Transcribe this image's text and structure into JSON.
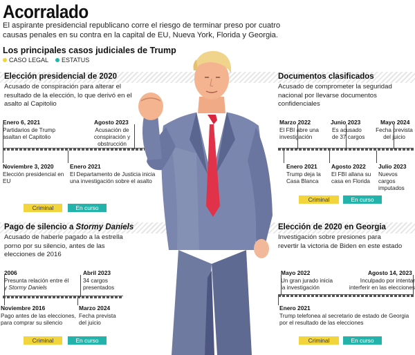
{
  "header": {
    "title": "Acorralado",
    "subtitle": "El aspirante presidencial republicano corre el riesgo de terminar preso por cuatro causas penales en su contra en la capital de EU, Nueva York, Florida y Georgia.",
    "section_title": "Los principales casos judiciales de Trump",
    "legend": {
      "legal": "CASO LEGAL",
      "status": "ESTATUS"
    }
  },
  "colors": {
    "legal": "#f2d53c",
    "status": "#23b3aa"
  },
  "cases": {
    "c1": {
      "title": "Elección presidencial de 2020",
      "desc": "Acusado de conspiración para alterar el resultado de la elección, lo que derivó en el asalto al Capitolio",
      "events": [
        {
          "date": "Enero 6, 2021",
          "text": "Partidarios de Trump asaltan el Capitolio"
        },
        {
          "date": "Agosto 2023",
          "text": "Acusación de conspiración y obstrucción"
        },
        {
          "date": "Noviembre 3, 2020",
          "text": "Elección presidencial en EU"
        },
        {
          "date": "Enero 2021",
          "text": "El Departamento de Justicia inicia una investigación sobre el asalto"
        }
      ],
      "legal": "Criminal",
      "status": "En curso"
    },
    "c2": {
      "title": "Documentos clasificados",
      "desc": "Acusado de comprometer la seguridad nacional por llevarse documentos confidenciales",
      "events": [
        {
          "date": "Marzo 2022",
          "text": "El FBI abre una investigación"
        },
        {
          "date": "Junio 2023",
          "text": "Es acusado de 37 cargos"
        },
        {
          "date": "Mayo 2024",
          "text": "Fecha prevista del juicio"
        },
        {
          "date": "Enero 2021",
          "text": "Trump deja la Casa Blanca"
        },
        {
          "date": "Agosto 2022",
          "text": "El FBI allana su casa en Florida"
        },
        {
          "date": "Julio 2023",
          "text": "Nuevos cargos imputados"
        }
      ],
      "legal": "Criminal",
      "status": "En curso"
    },
    "c3": {
      "title_prefix": "Pago de silencio a",
      "title_name": "Stormy Daniels",
      "desc": "Acusado de haberle pagado a la estrella porno por su silencio, antes de las elecciones de 2016",
      "events": [
        {
          "date": "2006",
          "text": "Presunta relación entre él y",
          "text_name": "Stormy Daniels"
        },
        {
          "date": "Abril 2023",
          "text": "34 cargos presentados"
        },
        {
          "date": "Noviembre 2016",
          "text": "Pago antes de las elecciones, para comprar su silencio"
        },
        {
          "date": "Marzo 2024",
          "text": "Fecha prevista del juicio"
        }
      ],
      "legal": "Criminal",
      "status": "En curso"
    },
    "c4": {
      "title": "Elección de 2020 en Georgia",
      "desc": "Investigación sobre presiones para revertir la victoria de Biden en este estado",
      "events": [
        {
          "date": "Mayo 2022",
          "text": "Un gran jurado inicia la investigación"
        },
        {
          "date": "Agosto 14, 2023",
          "text": "Inculpado por intentar interferir en las elecciones"
        },
        {
          "date": "Enero 2021",
          "text": "Trump telefonea al secretario de estado de Georgia por el resultado de las elecciones"
        }
      ],
      "legal": "Criminal",
      "status": "En curso"
    }
  }
}
